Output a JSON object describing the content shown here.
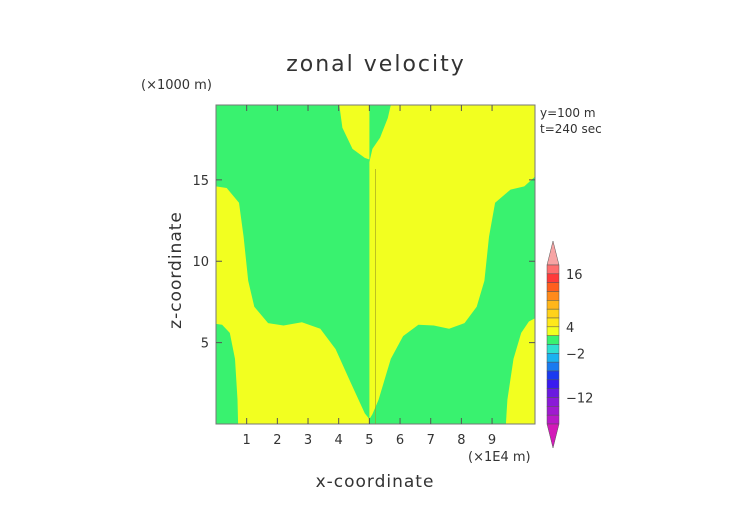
{
  "chart_data": {
    "type": "heatmap",
    "title": "zonal velocity",
    "xlabel": "x-coordinate",
    "ylabel": "z-coordinate",
    "x_unit": "(×1E4 m)",
    "y_unit": "(×1000 m)",
    "annotations": [
      "y=100 m",
      "t=240 sec"
    ],
    "xlim": [
      0,
      10.4
    ],
    "ylim": [
      0,
      19.6
    ],
    "x_ticks": [
      1,
      2,
      3,
      4,
      5,
      6,
      7,
      8,
      9
    ],
    "y_ticks": [
      5,
      10,
      15
    ],
    "fill_colors": {
      "positive": "#f2ff20",
      "negative": "#39f26f"
    },
    "colorbar": {
      "labels": [
        16,
        4,
        -2,
        -12
      ],
      "segments": [
        {
          "lo": 18,
          "hi": null,
          "color": "#f7a4a4"
        },
        {
          "lo": 16,
          "hi": 18,
          "color": "#ff6f6f"
        },
        {
          "lo": 14,
          "hi": 16,
          "color": "#ff3a3a"
        },
        {
          "lo": 12,
          "hi": 14,
          "color": "#ff5f1f"
        },
        {
          "lo": 10,
          "hi": 12,
          "color": "#ff8a1a"
        },
        {
          "lo": 8,
          "hi": 10,
          "color": "#ffb61a"
        },
        {
          "lo": 6,
          "hi": 8,
          "color": "#ffd21a"
        },
        {
          "lo": 4,
          "hi": 6,
          "color": "#ffe81a"
        },
        {
          "lo": 2,
          "hi": 4,
          "color": "#f2ff20"
        },
        {
          "lo": 0,
          "hi": 2,
          "color": "#39f26f"
        },
        {
          "lo": -2,
          "hi": 0,
          "color": "#2ee0d0"
        },
        {
          "lo": -4,
          "hi": -2,
          "color": "#1ab2f0"
        },
        {
          "lo": -6,
          "hi": -4,
          "color": "#1a7af0"
        },
        {
          "lo": -8,
          "hi": -6,
          "color": "#1a3af0"
        },
        {
          "lo": -10,
          "hi": -8,
          "color": "#3a1af0"
        },
        {
          "lo": -12,
          "hi": -10,
          "color": "#6a1ae0"
        },
        {
          "lo": -14,
          "hi": -12,
          "color": "#8a1ad8"
        },
        {
          "lo": -16,
          "hi": -14,
          "color": "#a01ad0"
        },
        {
          "lo": -18,
          "hi": -16,
          "color": "#b81ac8"
        },
        {
          "lo": null,
          "hi": -18,
          "color": "#d21ab8"
        }
      ]
    },
    "regions": [
      {
        "sign": "positive",
        "name": "left-edge-lobe",
        "boundary": [
          [
            0,
            14.6
          ],
          [
            0.35,
            14.5
          ],
          [
            0.75,
            13.6
          ],
          [
            0.9,
            11.5
          ],
          [
            1.05,
            8.8
          ],
          [
            1.25,
            7.2
          ],
          [
            1.7,
            6.2
          ],
          [
            2.2,
            6.05
          ],
          [
            2.8,
            6.25
          ],
          [
            3.4,
            5.85
          ],
          [
            3.9,
            4.6
          ],
          [
            4.4,
            2.5
          ],
          [
            4.85,
            0.65
          ],
          [
            5,
            0.3
          ],
          [
            5,
            0
          ],
          [
            0.72,
            0
          ],
          [
            0.7,
            1.5
          ],
          [
            0.62,
            4
          ],
          [
            0.45,
            5.6
          ],
          [
            0.2,
            6.1
          ],
          [
            0,
            6.15
          ]
        ]
      },
      {
        "sign": "positive",
        "name": "right-half",
        "boundary": [
          [
            5,
            16.1
          ],
          [
            5.1,
            16.9
          ],
          [
            5.35,
            17.6
          ],
          [
            5.6,
            18.8
          ],
          [
            5.7,
            19.6
          ],
          [
            10.4,
            19.6
          ],
          [
            10.4,
            15.2
          ],
          [
            10.05,
            14.6
          ],
          [
            9.6,
            14.4
          ],
          [
            9.1,
            13.6
          ],
          [
            8.9,
            11.5
          ],
          [
            8.75,
            8.8
          ],
          [
            8.5,
            7.2
          ],
          [
            8.1,
            6.2
          ],
          [
            7.6,
            5.85
          ],
          [
            7.1,
            6.05
          ],
          [
            6.6,
            6.1
          ],
          [
            6.1,
            5.4
          ],
          [
            5.7,
            4
          ],
          [
            5.3,
            1.5
          ],
          [
            5.1,
            0.6
          ],
          [
            5,
            0.3
          ]
        ]
      },
      {
        "sign": "positive",
        "name": "top-cap",
        "boundary": [
          [
            4.02,
            19.6
          ],
          [
            4.12,
            18.2
          ],
          [
            4.45,
            16.9
          ],
          [
            4.85,
            16.35
          ],
          [
            5,
            16.25
          ],
          [
            5,
            19.6
          ]
        ]
      },
      {
        "sign": "positive",
        "name": "right-bottom-strip",
        "boundary": [
          [
            9.45,
            0
          ],
          [
            9.5,
            1.5
          ],
          [
            9.7,
            4
          ],
          [
            9.95,
            5.6
          ],
          [
            10.2,
            6.3
          ],
          [
            10.4,
            6.5
          ],
          [
            10.4,
            0
          ]
        ]
      }
    ]
  }
}
